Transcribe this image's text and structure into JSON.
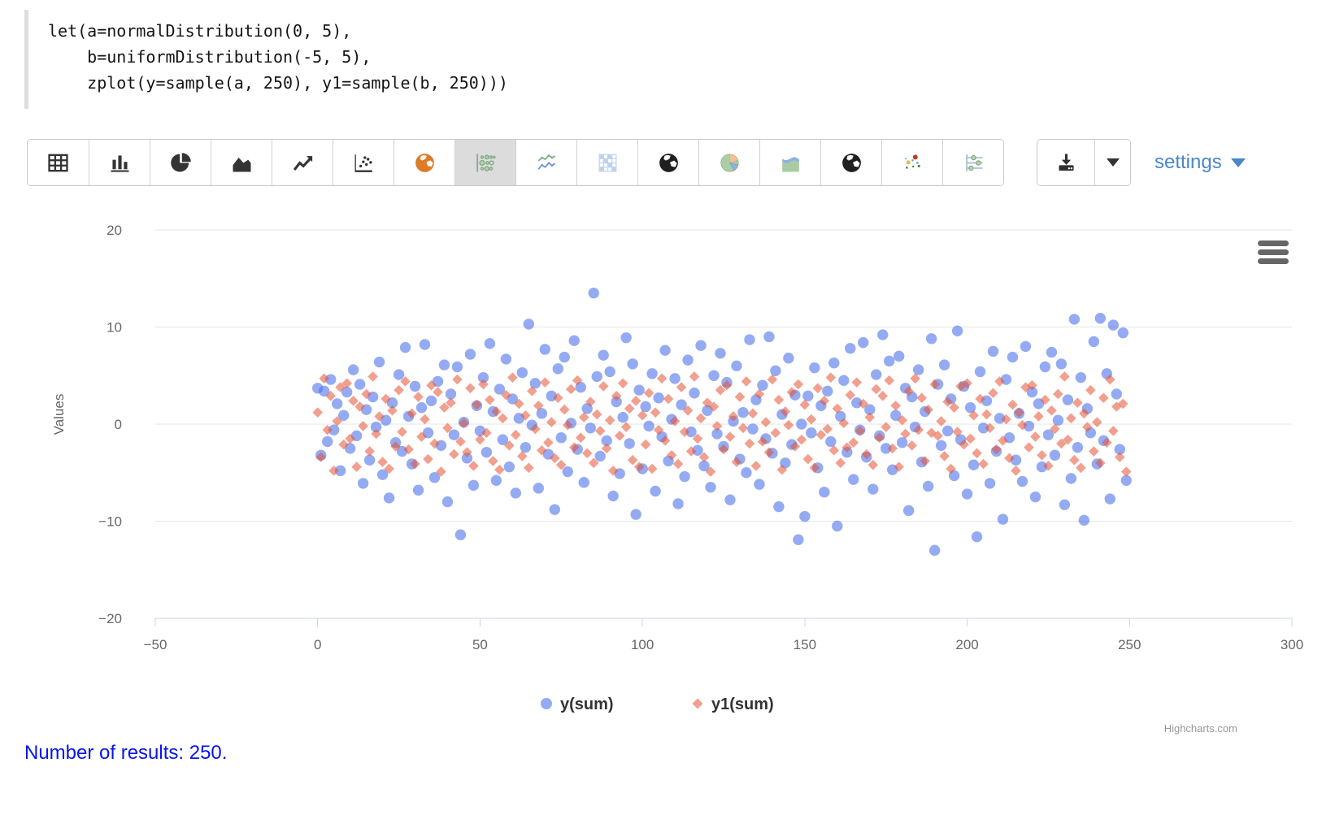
{
  "code_editor": {
    "text": "let(a=normalDistribution(0, 5),\n    b=uniformDistribution(-5, 5),\n    zplot(y=sample(a, 250), y1=sample(b, 250)))"
  },
  "toolbar": {
    "chart_type_buttons": [
      {
        "icon": "table",
        "selected": false
      },
      {
        "icon": "bar-chart",
        "selected": false
      },
      {
        "icon": "pie-chart",
        "selected": false
      },
      {
        "icon": "area-chart",
        "selected": false
      },
      {
        "icon": "line-chart",
        "selected": false
      },
      {
        "icon": "scatter-plot",
        "selected": false
      },
      {
        "icon": "world-map-orange",
        "selected": false
      },
      {
        "icon": "bubble-chart",
        "selected": true
      },
      {
        "icon": "multi-line-chart",
        "selected": false
      },
      {
        "icon": "heatmap",
        "selected": false
      },
      {
        "icon": "globe-dark",
        "selected": false
      },
      {
        "icon": "pie-chart-colored",
        "selected": false
      },
      {
        "icon": "area-chart-colored",
        "selected": false
      },
      {
        "icon": "globe-dark-2",
        "selected": false
      },
      {
        "icon": "scatter-colored",
        "selected": false
      },
      {
        "icon": "parallel-coordinates",
        "selected": false
      }
    ],
    "settings_label": "settings"
  },
  "colors": {
    "link_blue": "#4a87c7",
    "results_blue": "#0714ee",
    "gridline": "#e6e6e6",
    "axis_line": "#ccd6eb",
    "tick_label": "#666666"
  },
  "chart_data": {
    "type": "scatter",
    "title": "",
    "xlabel": "",
    "ylabel": "Values",
    "x_is_index": true,
    "xlim": [
      -50,
      300
    ],
    "ylim": [
      -20,
      20
    ],
    "xticks": [
      -50,
      0,
      50,
      100,
      150,
      200,
      250,
      300
    ],
    "yticks": [
      20,
      10,
      0,
      -10,
      -20
    ],
    "grid": "horizontal",
    "legend_position": "bottom",
    "credit": "Highcharts.com",
    "series": [
      {
        "name": "y(sum)",
        "marker": "circle",
        "color": "rgba(70,110,235,0.58)",
        "n": 250,
        "y": [
          3.7,
          -3.2,
          3.4,
          -1.8,
          4.6,
          -0.6,
          2.1,
          -4.8,
          0.9,
          3.3,
          -2.5,
          5.6,
          -1.2,
          4.1,
          -6.1,
          1.5,
          -3.7,
          2.8,
          -0.3,
          6.4,
          -5.2,
          0.4,
          -7.6,
          2.2,
          -1.9,
          5.1,
          -2.8,
          7.9,
          0.8,
          -4.1,
          3.9,
          -6.8,
          1.7,
          8.2,
          -0.9,
          2.4,
          -5.5,
          4.4,
          -2.2,
          6.1,
          -8.0,
          3.1,
          -1.1,
          5.9,
          -11.4,
          0.2,
          -3.5,
          7.2,
          -6.3,
          1.9,
          -0.7,
          4.8,
          -2.9,
          8.3,
          1.3,
          -5.8,
          3.6,
          -1.6,
          6.7,
          -4.4,
          2.6,
          -7.1,
          0.6,
          5.3,
          -2.4,
          10.3,
          -0.1,
          4.2,
          -6.6,
          1.1,
          7.7,
          -3.1,
          2.9,
          -8.8,
          5.7,
          -1.4,
          6.9,
          -4.9,
          0.1,
          8.6,
          -2.6,
          3.8,
          -6.0,
          1.6,
          -0.4,
          13.5,
          4.9,
          -3.3,
          7.1,
          -1.7,
          5.4,
          -7.4,
          2.3,
          -5.1,
          0.7,
          8.9,
          -2.0,
          6.2,
          -9.3,
          3.5,
          -4.6,
          1.8,
          -0.2,
          5.2,
          -6.9,
          2.7,
          -1.3,
          7.6,
          -3.8,
          0.5,
          4.7,
          -8.2,
          2.0,
          -5.4,
          6.6,
          -0.8,
          3.2,
          -2.7,
          8.1,
          -4.3,
          1.4,
          -6.5,
          5.0,
          -1.0,
          7.3,
          -2.3,
          4.3,
          -7.8,
          0.3,
          6.0,
          -3.6,
          1.2,
          -5.0,
          8.7,
          -0.5,
          2.5,
          -6.2,
          4.0,
          -1.5,
          9.0,
          -3.0,
          5.5,
          -8.5,
          1.0,
          -4.0,
          6.8,
          -2.1,
          3.0,
          -11.9,
          0.0,
          -9.5,
          2.9,
          -0.9,
          5.8,
          -4.5,
          1.9,
          -7.0,
          3.4,
          -1.8,
          6.3,
          -10.5,
          0.8,
          4.5,
          -2.9,
          7.8,
          -5.7,
          2.2,
          -0.6,
          8.4,
          -3.4,
          1.5,
          -6.7,
          5.1,
          -1.2,
          9.2,
          -2.5,
          6.5,
          -4.7,
          0.9,
          7.0,
          -1.9,
          3.7,
          -8.9,
          2.8,
          -0.3,
          5.6,
          -3.9,
          1.3,
          -6.4,
          8.8,
          -13.0,
          4.1,
          -2.2,
          6.1,
          -0.7,
          2.6,
          -5.3,
          9.6,
          -1.6,
          3.9,
          -7.2,
          1.7,
          -4.2,
          -11.6,
          5.4,
          -0.4,
          2.4,
          -6.1,
          7.5,
          -2.8,
          0.6,
          -9.8,
          4.6,
          -1.4,
          6.9,
          -3.7,
          1.1,
          -5.9,
          8.0,
          -0.2,
          3.3,
          -7.5,
          2.1,
          -4.4,
          5.9,
          -1.1,
          7.4,
          -3.2,
          0.4,
          6.2,
          -8.3,
          2.5,
          -5.6,
          10.8,
          -2.4,
          4.8,
          -9.9,
          1.6,
          -0.9,
          8.5,
          -4.1,
          10.9,
          -1.7,
          5.2,
          -7.7,
          10.2,
          3.1,
          -2.6,
          9.4,
          -5.8
        ]
      },
      {
        "name": "y1(sum)",
        "marker": "diamond",
        "color": "rgba(230,80,50,0.55)",
        "n": 250,
        "y": [
          1.2,
          -3.4,
          4.7,
          -0.6,
          2.9,
          -4.8,
          0.3,
          3.8,
          -2.1,
          4.2,
          -1.5,
          2.4,
          -4.4,
          1.8,
          -0.2,
          3.1,
          -2.8,
          4.9,
          -1.0,
          0.8,
          -3.9,
          2.6,
          -4.6,
          1.4,
          -2.3,
          3.5,
          -0.8,
          4.4,
          -2.6,
          1.1,
          -4.1,
          2.8,
          -1.3,
          0.5,
          -3.6,
          4.0,
          -2.0,
          3.3,
          -4.9,
          1.7,
          -0.4,
          2.2,
          -3.1,
          4.6,
          -1.8,
          0.1,
          -2.9,
          3.7,
          -4.3,
          2.0,
          -1.6,
          4.1,
          -0.9,
          2.5,
          -3.8,
          1.3,
          -4.7,
          0.6,
          3.0,
          -2.2,
          4.8,
          -1.1,
          2.1,
          -3.3,
          0.9,
          -4.5,
          3.4,
          -0.5,
          1.9,
          -2.7,
          4.3,
          -1.9,
          0.2,
          -3.5,
          2.7,
          -4.2,
          1.5,
          -0.1,
          3.6,
          -2.4,
          4.5,
          -1.4,
          0.7,
          -3.0,
          2.3,
          -4.0,
          1.0,
          -0.7,
          3.9,
          -2.5,
          0.4,
          -4.8,
          2.9,
          -1.2,
          4.2,
          -0.3,
          1.6,
          -3.7,
          2.4,
          -4.4,
          0.9,
          -2.1,
          3.2,
          -4.6,
          1.2,
          -0.6,
          4.7,
          -1.7,
          2.6,
          -3.2,
          0.3,
          -4.1,
          3.8,
          -0.8,
          1.4,
          -2.8,
          4.9,
          -1.5,
          0.6,
          -3.4,
          2.2,
          -4.9,
          1.8,
          -0.2,
          3.5,
          -2.6,
          4.0,
          -1.3,
          0.8,
          -3.9,
          2.8,
          -0.4,
          4.4,
          -2.0,
          1.1,
          -4.3,
          3.1,
          -1.8,
          0.2,
          -2.9,
          4.6,
          -0.9,
          2.5,
          -4.7,
          1.3,
          -0.1,
          3.3,
          -2.3,
          4.1,
          -1.6,
          2.0,
          -3.6,
          0.5,
          -4.5,
          3.7,
          -1.1,
          2.4,
          -0.5,
          4.8,
          -2.7,
          1.6,
          -4.0,
          0.1,
          -2.4,
          3.0,
          -1.9,
          4.3,
          -0.7,
          2.1,
          -3.1,
          0.7,
          -4.2,
          3.6,
          -1.4,
          2.9,
          -0.3,
          4.5,
          -2.5,
          1.9,
          -4.4,
          0.4,
          -1.0,
          3.4,
          -2.2,
          4.7,
          -0.6,
          2.7,
          -3.8,
          1.5,
          -0.9,
          4.1,
          -1.2,
          0.3,
          -3.3,
          2.3,
          -4.6,
          1.7,
          -0.8,
          3.9,
          -2.1,
          4.2,
          -1.5,
          0.9,
          -3.0,
          2.6,
          -4.1,
          1.0,
          -0.4,
          3.2,
          -2.6,
          4.4,
          -1.7,
          0.5,
          -3.5,
          2.0,
          -4.8,
          1.2,
          -0.1,
          3.8,
          -2.4,
          4.0,
          -1.3,
          0.8,
          -3.2,
          2.5,
          -4.3,
          1.4,
          -0.5,
          3.1,
          -2.0,
          4.9,
          -1.6,
          0.6,
          -3.7,
          2.2,
          -4.5,
          1.1,
          -0.3,
          3.5,
          -2.8,
          0.2,
          -4.0,
          2.7,
          -1.9,
          4.6,
          -0.7,
          1.8,
          -3.4,
          2.1,
          -4.9
        ]
      }
    ]
  },
  "footer": {
    "results_text": "Number of results: 250."
  }
}
